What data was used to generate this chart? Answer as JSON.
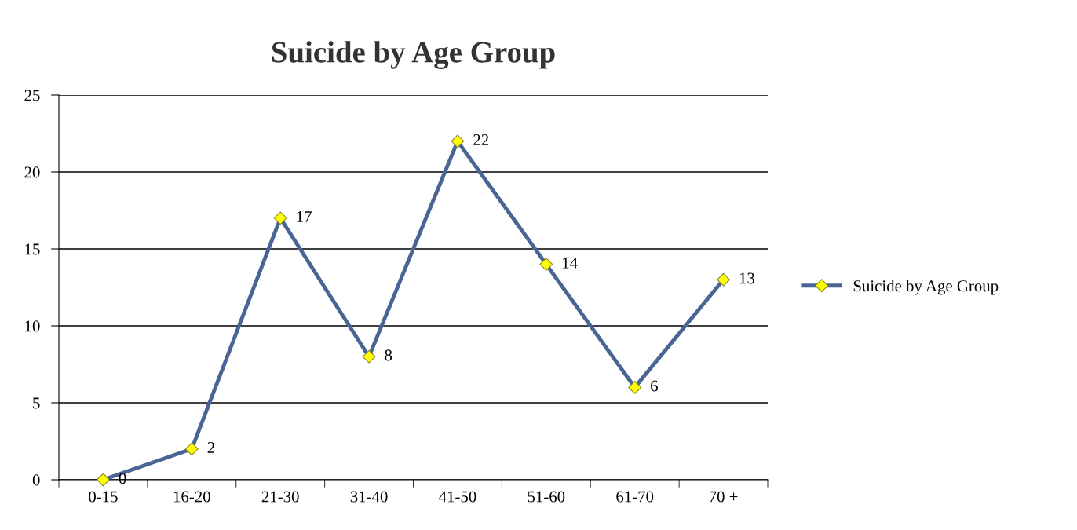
{
  "chart_data": {
    "type": "line",
    "title": "Suicide by Age Group",
    "categories": [
      "0-15",
      "16-20",
      "21-30",
      "31-40",
      "41-50",
      "51-60",
      "61-70",
      "70 +"
    ],
    "series": [
      {
        "name": "Suicide by Age Group",
        "color": "#4a6494",
        "values": [
          0,
          2,
          17,
          8,
          22,
          14,
          6,
          13
        ]
      }
    ],
    "ylim": [
      0,
      25
    ],
    "yticks": [
      0,
      5,
      10,
      15,
      20,
      25
    ],
    "grid": "y",
    "legend": "right",
    "marker": "diamond",
    "data_labels": true
  }
}
